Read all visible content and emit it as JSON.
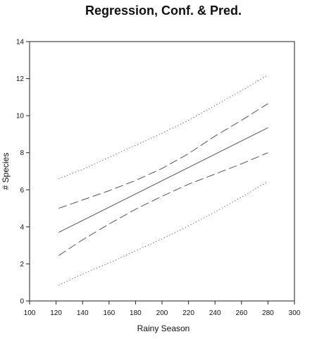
{
  "chart_data": {
    "type": "line",
    "title": "Regression, Conf. & Pred.",
    "xlabel": "Rainy Season",
    "ylabel": "# Species",
    "xlim": [
      100,
      300
    ],
    "ylim": [
      0,
      14
    ],
    "x_ticks": [
      100,
      120,
      140,
      160,
      180,
      200,
      220,
      240,
      260,
      280,
      300
    ],
    "y_ticks": [
      0,
      2,
      4,
      6,
      8,
      10,
      12,
      14
    ],
    "grid": false,
    "legend": "none",
    "series": [
      {
        "style": "solid",
        "x": [
          122,
          280
        ],
        "y": [
          3.7,
          9.35
        ]
      },
      {
        "style": "dashed",
        "x": [
          122,
          140,
          160,
          180,
          200,
          220,
          240,
          260,
          280
        ],
        "y": [
          5.0,
          5.45,
          5.95,
          6.5,
          7.15,
          7.95,
          8.9,
          9.75,
          10.65
        ]
      },
      {
        "style": "dashed",
        "x": [
          122,
          140,
          160,
          180,
          200,
          220,
          240,
          260,
          280
        ],
        "y": [
          2.45,
          3.3,
          4.15,
          4.95,
          5.65,
          6.3,
          6.85,
          7.4,
          8.0
        ]
      },
      {
        "style": "dotted",
        "x": [
          122,
          140,
          160,
          180,
          200,
          220,
          240,
          260,
          280
        ],
        "y": [
          6.6,
          7.1,
          7.75,
          8.4,
          9.05,
          9.75,
          10.55,
          11.35,
          12.2
        ]
      },
      {
        "style": "dotted",
        "x": [
          122,
          140,
          160,
          180,
          200,
          220,
          240,
          260,
          280
        ],
        "y": [
          0.85,
          1.45,
          2.05,
          2.7,
          3.35,
          4.05,
          4.8,
          5.6,
          6.45
        ]
      }
    ],
    "colors": {
      "line": "#555555",
      "axis": "#222222",
      "text": "#111111",
      "background": "#ffffff"
    }
  }
}
